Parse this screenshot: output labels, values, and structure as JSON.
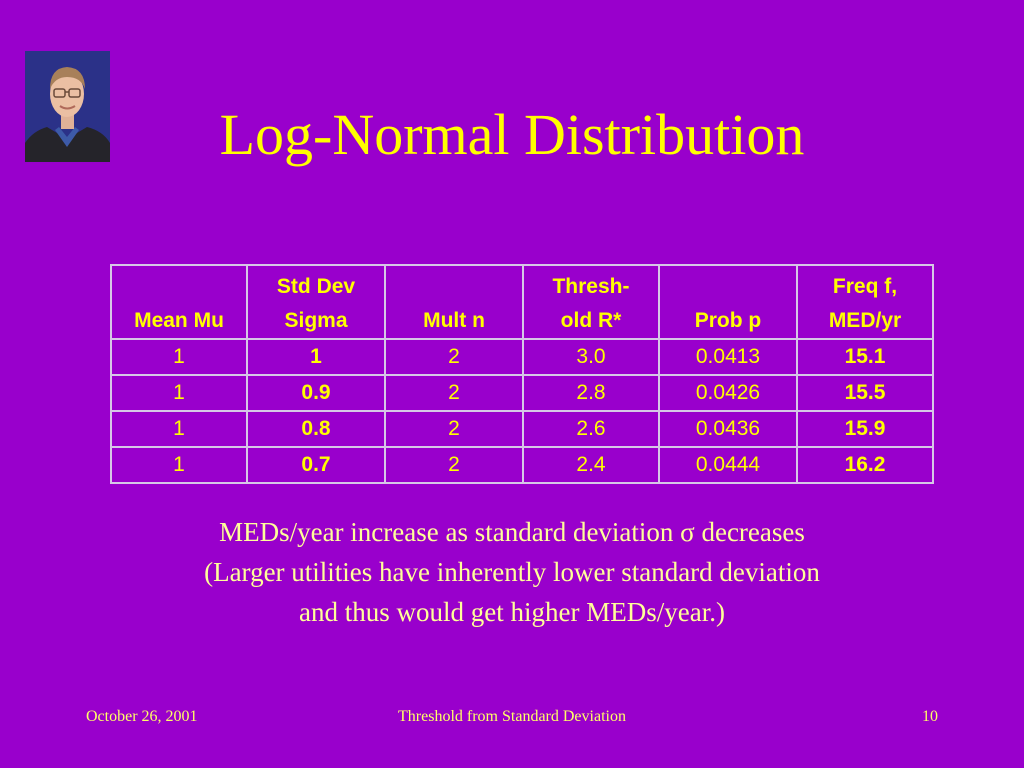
{
  "slide": {
    "title": "Log-Normal Distribution",
    "table": {
      "headers": [
        [
          "",
          "Mean Mu"
        ],
        [
          "Std Dev",
          "Sigma"
        ],
        [
          "",
          "Mult n"
        ],
        [
          "Thresh-",
          "old R*"
        ],
        [
          "",
          "Prob p"
        ],
        [
          "Freq f,",
          "MED/yr"
        ]
      ],
      "rows": [
        [
          "1",
          "1",
          "2",
          "3.0",
          "0.0413",
          "15.1"
        ],
        [
          "1",
          "0.9",
          "2",
          "2.8",
          "0.0426",
          "15.5"
        ],
        [
          "1",
          "0.8",
          "2",
          "2.6",
          "0.0436",
          "15.9"
        ],
        [
          "1",
          "0.7",
          "2",
          "2.4",
          "0.0444",
          "16.2"
        ]
      ]
    },
    "body_lines": [
      "MEDs/year increase as standard deviation σ decreases",
      "(Larger utilities have inherently lower standard deviation",
      "and thus would get higher MEDs/year.)"
    ],
    "footer": {
      "date": "October 26, 2001",
      "center": "Threshold from Standard Deviation",
      "page": "10"
    },
    "colors": {
      "background": "#9900cc",
      "title": "#ffff00",
      "text": "#ffff99",
      "table_border": "#d6c8e6"
    }
  }
}
